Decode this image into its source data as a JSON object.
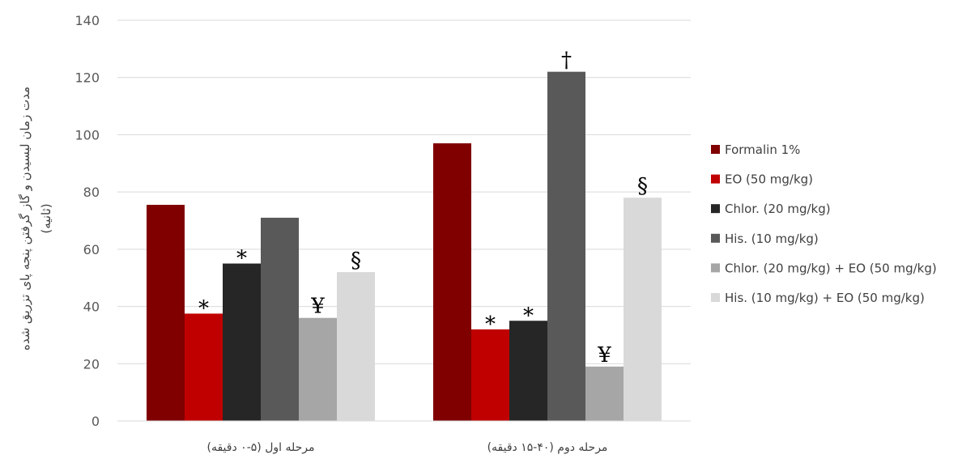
{
  "chart_data": {
    "type": "bar",
    "title": "",
    "xlabel": "",
    "ylabel_lines": [
      "مدت زمان لیسیدن و گاز گرفتن پنجه پای تزریق شده",
      "(ثانیه)"
    ],
    "ylim": [
      0,
      140
    ],
    "yticks": [
      0,
      20,
      40,
      60,
      80,
      100,
      120,
      140
    ],
    "grid": true,
    "legend_position": "right",
    "categories": [
      "مرحله اول (۵-۰ دقیقه)",
      "مرحله دوم (۴۰-۱۵ دقیقه)"
    ],
    "series": [
      {
        "name": "Formalin 1%",
        "color": "#800000",
        "values": [
          75.5,
          97
        ],
        "annotations": [
          "",
          ""
        ]
      },
      {
        "name": "EO (50 mg/kg)",
        "color": "#c00000",
        "values": [
          37.5,
          32
        ],
        "annotations": [
          "*",
          "*"
        ]
      },
      {
        "name": "Chlor. (20 mg/kg)",
        "color": "#262626",
        "values": [
          55,
          35
        ],
        "annotations": [
          "*",
          "*"
        ]
      },
      {
        "name": "His. (10 mg/kg)",
        "color": "#595959",
        "values": [
          71,
          122
        ],
        "annotations": [
          "",
          "†"
        ]
      },
      {
        "name": "Chlor. (20 mg/kg) + EO (50 mg/kg)",
        "color": "#a6a6a6",
        "values": [
          36,
          19
        ],
        "annotations": [
          "¥",
          "¥"
        ]
      },
      {
        "name": "His. (10 mg/kg) + EO (50 mg/kg)",
        "color": "#d9d9d9",
        "values": [
          52,
          78
        ],
        "annotations": [
          "§",
          "§"
        ]
      }
    ]
  }
}
